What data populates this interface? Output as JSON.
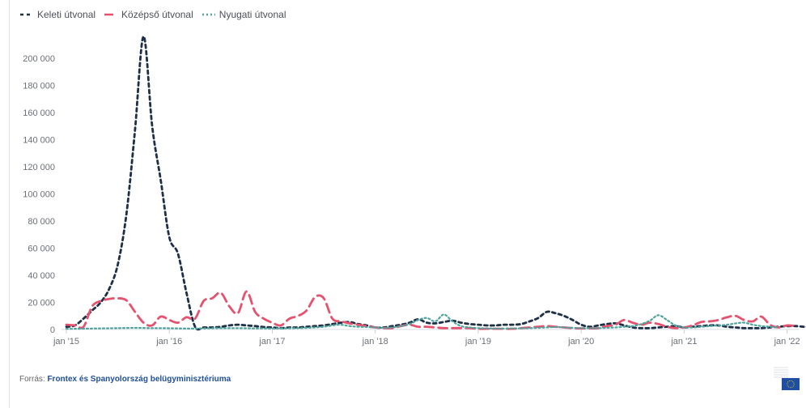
{
  "legend": [
    {
      "label": "Keleti útvonal",
      "color": "#1d3048",
      "dash": "4,4"
    },
    {
      "label": "Középső útvonal",
      "color": "#e6526e",
      "dash": "11,6"
    },
    {
      "label": "Nyugati útvonal",
      "color": "#4fa39d",
      "dash": "2,3"
    }
  ],
  "source": {
    "prefix": "Forrás:",
    "text": "Frontex és Spanyolország belügyminisztériuma"
  },
  "chart_data": {
    "type": "line",
    "x_start": "2015-01",
    "x_step": "month",
    "ylim": [
      0,
      216000
    ],
    "yticks": [
      "0",
      "20 000",
      "40 000",
      "60 000",
      "80 000",
      "100 000",
      "120 000",
      "140 000",
      "160 000",
      "180 000",
      "200 000"
    ],
    "xticks": [
      "jan '15",
      "jan '16",
      "jan '17",
      "jan '18",
      "jan '19",
      "jan '20",
      "jan '21",
      "jan '22"
    ],
    "series": [
      {
        "name": "Keleti útvonal",
        "color": "#1d3048",
        "values": [
          2000,
          3000,
          8000,
          14000,
          20000,
          30000,
          48000,
          85000,
          147000,
          216000,
          150000,
          110000,
          68000,
          56000,
          27000,
          2000,
          1500,
          1500,
          2000,
          3000,
          3500,
          3000,
          2500,
          1800,
          1500,
          1000,
          1500,
          1500,
          2000,
          2500,
          3000,
          4000,
          5000,
          5500,
          4000,
          3000,
          1500,
          1500,
          2500,
          3500,
          5000,
          7500,
          5000,
          4500,
          5500,
          6500,
          5000,
          4000,
          3500,
          3000,
          3000,
          3500,
          3500,
          4000,
          6000,
          8500,
          13000,
          12000,
          10000,
          7000,
          3500,
          2000,
          3000,
          4000,
          4500,
          3000,
          1500,
          1000,
          1000,
          1500,
          2000,
          2500,
          1500,
          2000,
          2500,
          3000,
          3000,
          2000,
          1500,
          1000,
          1000,
          1000,
          1500,
          2000,
          2500,
          2500,
          2000,
          2000,
          2500,
          3500,
          3000,
          3000
        ]
      },
      {
        "name": "Középső útvonal",
        "color": "#e6526e",
        "values": [
          3500,
          3000,
          2000,
          17000,
          21000,
          22500,
          23000,
          21500,
          13000,
          5000,
          3000,
          9500,
          7000,
          5000,
          9000,
          8000,
          21000,
          23000,
          27000,
          17000,
          12000,
          28000,
          13000,
          8000,
          5000,
          3000,
          8000,
          10000,
          14000,
          24000,
          23000,
          8000,
          6000,
          4500,
          3500,
          2500,
          1500,
          1000,
          1000,
          2500,
          3500,
          2000,
          2000,
          1500,
          1000,
          1000,
          1000,
          1000,
          500,
          500,
          500,
          500,
          500,
          1000,
          1500,
          2000,
          2500,
          2000,
          1500,
          1000,
          800,
          800,
          1000,
          2500,
          3500,
          7000,
          5000,
          3500,
          5000,
          4000,
          2000,
          1000,
          1500,
          3000,
          5500,
          6000,
          7000,
          9000,
          10000,
          7000,
          6000,
          9500,
          3500,
          1500,
          3000,
          2500
        ]
      },
      {
        "name": "Nyugati útvonal",
        "color": "#4fa39d",
        "values": [
          500,
          500,
          600,
          700,
          800,
          900,
          1000,
          1100,
          1200,
          1100,
          1000,
          1000,
          900,
          800,
          700,
          700,
          800,
          900,
          1000,
          1000,
          1000,
          900,
          800,
          800,
          700,
          800,
          900,
          1000,
          1200,
          1500,
          2000,
          3000,
          3500,
          2500,
          2000,
          1800,
          1500,
          1200,
          1500,
          2500,
          4000,
          7000,
          8500,
          6000,
          11000,
          6000,
          2500,
          1500,
          1000,
          800,
          700,
          700,
          800,
          900,
          1000,
          1200,
          1500,
          1800,
          1500,
          1200,
          1000,
          1000,
          1000,
          1200,
          1500,
          2000,
          2500,
          4000,
          6500,
          10500,
          7000,
          3000,
          1500,
          1500,
          2000,
          2500,
          3000,
          3500,
          4500,
          5000,
          3500,
          2500,
          2000,
          1500
        ]
      }
    ]
  }
}
